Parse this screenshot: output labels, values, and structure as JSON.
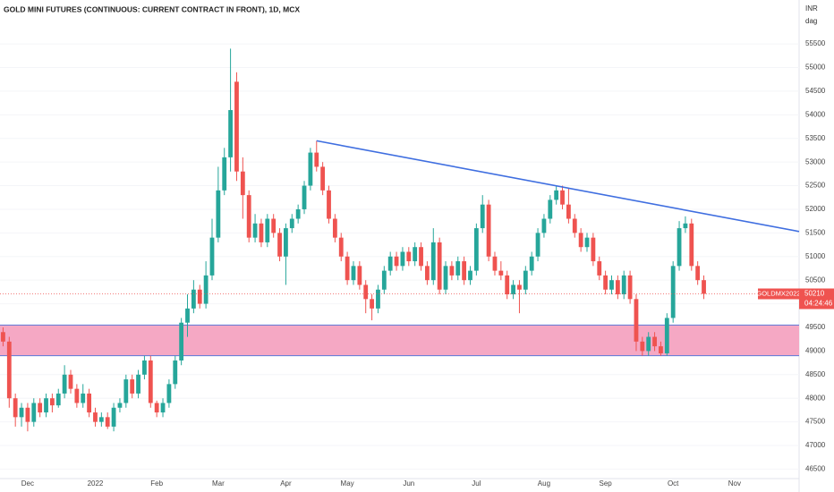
{
  "chart_data": {
    "type": "candlestick",
    "title": "GOLD MINI FUTURES (CONTINUOUS: CURRENT CONTRACT IN FRONT), 1D, MCX",
    "currency": "INR",
    "unit": "dag",
    "symbol": "GOLDMX2022",
    "countdown": "04:24:46",
    "last_price": 50210,
    "categories": [
      null,
      null,
      null,
      null,
      "Dec",
      null,
      null,
      null,
      null,
      null,
      null,
      null,
      null,
      null,
      null,
      "2022",
      null,
      null,
      null,
      null,
      null,
      null,
      null,
      null,
      null,
      "Feb",
      null,
      null,
      null,
      null,
      null,
      null,
      null,
      null,
      null,
      "Mar",
      null,
      null,
      null,
      null,
      null,
      null,
      null,
      null,
      null,
      null,
      "Apr",
      null,
      null,
      null,
      null,
      null,
      null,
      null,
      null,
      null,
      "May",
      null,
      null,
      null,
      null,
      null,
      null,
      null,
      null,
      null,
      "Jun",
      null,
      null,
      null,
      null,
      null,
      null,
      null,
      null,
      null,
      null,
      "Jul",
      null,
      null,
      null,
      null,
      null,
      null,
      null,
      null,
      null,
      null,
      "Aug",
      null,
      null,
      null,
      null,
      null,
      null,
      null,
      null,
      null,
      "Sep",
      null,
      null,
      null,
      null,
      null,
      null,
      null,
      null,
      null,
      null,
      "Oct",
      null,
      null,
      null,
      null,
      null,
      null,
      null,
      null,
      null,
      "Nov",
      null,
      null,
      null,
      null,
      null,
      null,
      null,
      null,
      null,
      null
    ],
    "open": [
      49400,
      49200,
      48000,
      47600,
      47800,
      47500,
      47900,
      47700,
      48000,
      47850,
      48100,
      48500,
      48200,
      47900,
      48100,
      47700,
      47500,
      47600,
      47400,
      47800,
      47900,
      48400,
      48100,
      48500,
      48800,
      47900,
      47700,
      47900,
      48300,
      48800,
      49600,
      49900,
      50300,
      50000,
      50600,
      51400,
      52400,
      53100,
      54700,
      52800,
      52300,
      51400,
      51700,
      51300,
      51800,
      51500,
      51000,
      51600,
      51800,
      52000,
      52500,
      53200,
      52900,
      52400,
      51800,
      51400,
      51000,
      50500,
      50800,
      50400,
      50100,
      49900,
      50300,
      50700,
      51000,
      50800,
      51100,
      50900,
      51200,
      50800,
      50500,
      51300,
      50300,
      50800,
      50600,
      50900,
      50500,
      50700,
      51600,
      52100,
      51000,
      50700,
      50600,
      50200,
      50400,
      50300,
      50700,
      51000,
      51500,
      51800,
      52200,
      52400,
      52100,
      51800,
      51500,
      51200,
      51400,
      50900,
      50600,
      50300,
      50500,
      50200,
      50600,
      50100,
      49200,
      49000,
      49300,
      49100,
      48950,
      49700,
      50800,
      51600,
      51700,
      50800,
      50500,
      null,
      null,
      null,
      null,
      null,
      null,
      null,
      null,
      null,
      null,
      null,
      null,
      null,
      null,
      null
    ],
    "high": [
      49500,
      49300,
      48100,
      47900,
      47900,
      48000,
      48000,
      48100,
      48100,
      48200,
      48700,
      48600,
      48300,
      48300,
      48200,
      47800,
      47700,
      47700,
      47900,
      48000,
      48500,
      48500,
      48600,
      48900,
      48900,
      47950,
      48000,
      48400,
      48900,
      49700,
      50200,
      50500,
      50400,
      50900,
      51800,
      52900,
      53300,
      55400,
      54900,
      53100,
      52400,
      51900,
      51800,
      51900,
      51900,
      51600,
      51700,
      51900,
      52100,
      52600,
      53300,
      53450,
      53000,
      52500,
      51900,
      51500,
      51100,
      50900,
      50900,
      50500,
      50200,
      50400,
      50800,
      51100,
      51100,
      51200,
      51200,
      51300,
      51300,
      50900,
      51600,
      51400,
      50900,
      50900,
      51000,
      51000,
      50800,
      51700,
      52300,
      52200,
      51100,
      50900,
      50700,
      50500,
      50500,
      50800,
      51100,
      51600,
      51900,
      52300,
      52500,
      52500,
      52450,
      51900,
      51600,
      51500,
      51500,
      51000,
      50700,
      50600,
      50600,
      50700,
      50700,
      50200,
      49300,
      49400,
      49400,
      49200,
      49800,
      50900,
      51750,
      51850,
      51800,
      50900,
      50600,
      null,
      null,
      null,
      null,
      null,
      null,
      null,
      null,
      null,
      null,
      null,
      null,
      null,
      null,
      null
    ],
    "low": [
      49100,
      47800,
      47400,
      47400,
      47300,
      47400,
      47600,
      47600,
      47700,
      47800,
      48000,
      48100,
      47800,
      47800,
      47600,
      47400,
      47400,
      47350,
      47300,
      47700,
      47800,
      48000,
      48000,
      48400,
      47800,
      47600,
      47600,
      47800,
      48200,
      48700,
      49300,
      49800,
      49900,
      49900,
      50500,
      51300,
      52300,
      52800,
      52600,
      51800,
      51300,
      51300,
      51200,
      51200,
      51400,
      50900,
      50400,
      51500,
      51700,
      51900,
      52400,
      52800,
      52300,
      51700,
      51300,
      50900,
      50400,
      50400,
      50300,
      49800,
      49650,
      49800,
      50200,
      50600,
      50700,
      50700,
      50800,
      50800,
      50700,
      50400,
      50400,
      50200,
      50200,
      50500,
      50500,
      50400,
      50400,
      50600,
      51500,
      50900,
      50600,
      50500,
      50100,
      50100,
      49800,
      50200,
      50600,
      50900,
      51400,
      51700,
      52100,
      52000,
      51700,
      51400,
      51100,
      51100,
      50800,
      50500,
      50200,
      50200,
      50100,
      50100,
      50000,
      49000,
      48900,
      48900,
      49000,
      48900,
      48900,
      49600,
      50700,
      51500,
      50700,
      50400,
      50100,
      null,
      null,
      null,
      null,
      null,
      null,
      null,
      null,
      null,
      null,
      null,
      null,
      null,
      null,
      null
    ],
    "close": [
      49200,
      48000,
      47600,
      47800,
      47500,
      47900,
      47700,
      48000,
      47850,
      48100,
      48500,
      48200,
      47900,
      48100,
      47700,
      47500,
      47600,
      47400,
      47800,
      47900,
      48400,
      48100,
      48500,
      48800,
      47900,
      47700,
      47900,
      48300,
      48800,
      49600,
      49900,
      50300,
      50000,
      50600,
      51400,
      52400,
      53100,
      54100,
      52800,
      52300,
      51400,
      51700,
      51300,
      51800,
      51500,
      51000,
      51600,
      51800,
      52000,
      52500,
      53200,
      52900,
      52400,
      51800,
      51400,
      51000,
      50500,
      50800,
      50400,
      50100,
      49900,
      50300,
      50700,
      51000,
      50800,
      51100,
      50900,
      51200,
      50800,
      50500,
      51300,
      50300,
      50800,
      50600,
      50900,
      50500,
      50700,
      51600,
      52100,
      51000,
      50700,
      50600,
      50200,
      50400,
      50300,
      50700,
      51000,
      51500,
      51800,
      52200,
      52400,
      52100,
      51800,
      51500,
      51200,
      51400,
      50900,
      50600,
      50300,
      50500,
      50200,
      50600,
      50100,
      49200,
      49000,
      49300,
      49100,
      48950,
      49700,
      50800,
      51600,
      51700,
      50800,
      50500,
      50210,
      null,
      null,
      null,
      null,
      null,
      null,
      null,
      null,
      null,
      null,
      null,
      null,
      null,
      null,
      null
    ],
    "up_color": "#26a69a",
    "down_color": "#ef5350",
    "support_zone": [
      48900,
      49550
    ],
    "zone_color": "#f5a8c4",
    "zone_border": "#5a78d8",
    "trendline": {
      "x": [
        51,
        129.5
      ],
      "y": [
        53450,
        51530
      ],
      "color": "#3f6ee0"
    },
    "ylim": [
      46300,
      56430
    ],
    "yticks": [
      46500,
      47000,
      47500,
      48000,
      48500,
      49000,
      49500,
      50000,
      50500,
      51000,
      51500,
      52000,
      52500,
      53000,
      53500,
      54000,
      54500,
      55000,
      55500
    ]
  }
}
